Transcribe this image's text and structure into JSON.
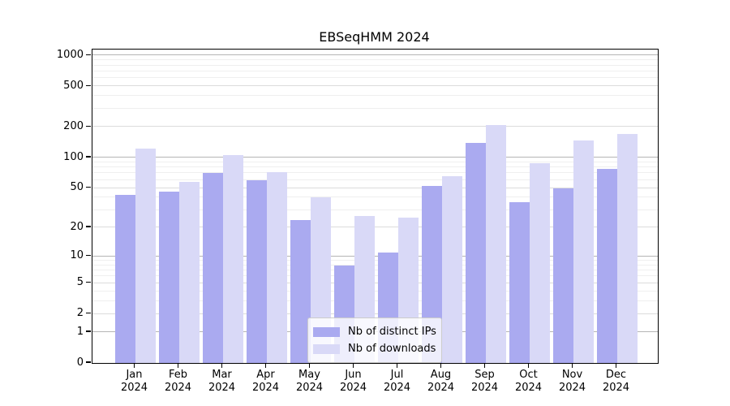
{
  "title": "EBSeqHMM 2024",
  "colors": {
    "ips_bar": "#aaaaf0",
    "downloads_bar": "#d9d9f7",
    "grid_power10": "#b5b5b5",
    "grid_labeled": "#dcdcdc",
    "grid_minor": "#efefef"
  },
  "legend": {
    "entries": [
      {
        "label": "Nb of distinct IPs",
        "series": "ips"
      },
      {
        "label": "Nb of downloads",
        "series": "downloads"
      }
    ]
  },
  "x_axis": {
    "year": "2024"
  },
  "chart_data": {
    "type": "bar",
    "title": "EBSeqHMM 2024",
    "categories": [
      "Jan",
      "Feb",
      "Mar",
      "Apr",
      "May",
      "Jun",
      "Jul",
      "Aug",
      "Sep",
      "Oct",
      "Nov",
      "Dec"
    ],
    "series": [
      {
        "name": "Nb of distinct IPs",
        "values": [
          43,
          46,
          70,
          60,
          24,
          8,
          11,
          52,
          140,
          36,
          50,
          77
        ]
      },
      {
        "name": "Nb of downloads",
        "values": [
          122,
          58,
          105,
          72,
          40,
          26,
          25,
          65,
          210,
          88,
          147,
          172
        ]
      }
    ],
    "yscale": "log1p",
    "y_ticks": [
      0,
      1,
      2,
      5,
      10,
      20,
      50,
      100,
      200,
      500,
      1000
    ],
    "ylim": [
      0,
      1300
    ],
    "grid": true,
    "legend_position": "lower center"
  }
}
